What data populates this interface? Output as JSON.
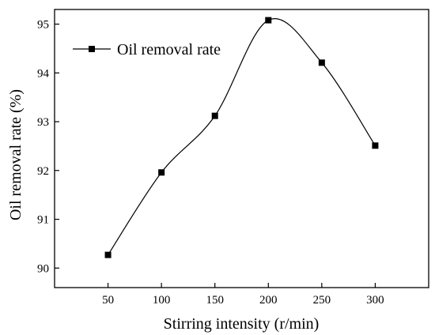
{
  "chart_data": {
    "type": "line",
    "smooth": true,
    "x": [
      50,
      100,
      150,
      200,
      250,
      300
    ],
    "series": [
      {
        "name": "Oil removal rate",
        "values": [
          90.27,
          91.96,
          93.12,
          95.08,
          94.21,
          92.51
        ],
        "color": "#000000",
        "marker": "square"
      }
    ],
    "xlabel": "Stirring intensity (r/min)",
    "ylabel": "Oil removal rate (%)",
    "xticks": [
      50,
      100,
      150,
      200,
      250,
      300
    ],
    "yticks": [
      90,
      91,
      92,
      93,
      94,
      95
    ],
    "xlim": [
      0,
      350
    ],
    "ylim": [
      89.6,
      95.3
    ],
    "grid": false,
    "legend_position": "top-left"
  }
}
